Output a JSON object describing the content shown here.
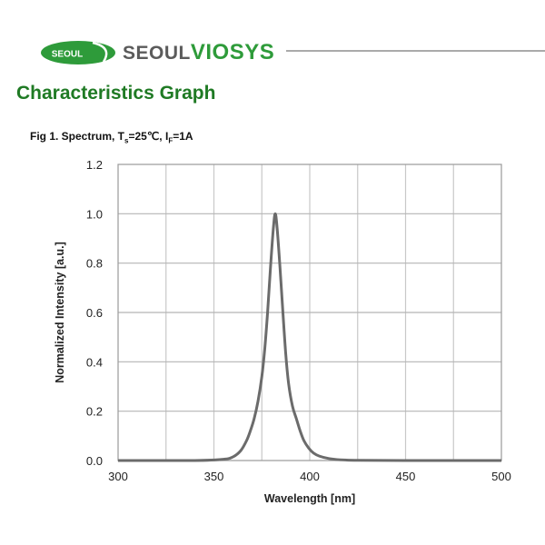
{
  "header": {
    "logo_badge_text": "SEOUL",
    "brand_prefix": "SEOUL",
    "brand_suffix": "VIOSYS",
    "brand_color": "#2e9b3a",
    "section_title": "Characteristics Graph",
    "section_title_color": "#1f7a24"
  },
  "figure": {
    "caption_prefix": "Fig 1. Spectrum, T",
    "caption_sub1": "s",
    "caption_mid": "=25℃, I",
    "caption_sub2": "F",
    "caption_suffix": "=1A"
  },
  "chart_data": {
    "type": "line",
    "title": "Fig 1. Spectrum, Ts=25℃, IF=1A",
    "xlabel": "Wavelength [nm]",
    "ylabel": "Normalized Intensity [a.u.]",
    "xlim": [
      300,
      500
    ],
    "ylim": [
      0.0,
      1.2
    ],
    "x_ticks": [
      "300",
      "350",
      "400",
      "450",
      "500"
    ],
    "y_ticks": [
      "0.0",
      "0.2",
      "0.4",
      "0.6",
      "0.8",
      "1.0",
      "1.2"
    ],
    "x_grid_step": 25,
    "y_grid_step": 0.2,
    "grid": true,
    "legend": null,
    "line_color": "#6b6b6b",
    "series": [
      {
        "name": "Spectrum",
        "x": [
          300,
          340,
          355,
          360,
          364,
          367,
          369,
          371,
          373,
          375,
          376.5,
          378,
          379.5,
          381,
          382,
          383,
          384.5,
          386,
          387.5,
          389,
          391,
          393,
          395,
          397,
          399.5,
          402,
          405,
          410,
          416,
          425,
          450,
          500
        ],
        "y": [
          0.0,
          0.0,
          0.005,
          0.015,
          0.04,
          0.08,
          0.12,
          0.17,
          0.24,
          0.34,
          0.45,
          0.6,
          0.78,
          0.94,
          1.0,
          0.94,
          0.78,
          0.6,
          0.43,
          0.31,
          0.22,
          0.17,
          0.12,
          0.08,
          0.05,
          0.03,
          0.018,
          0.008,
          0.003,
          0.001,
          0.0,
          0.0
        ]
      }
    ],
    "peak_wavelength_nm": 382
  }
}
